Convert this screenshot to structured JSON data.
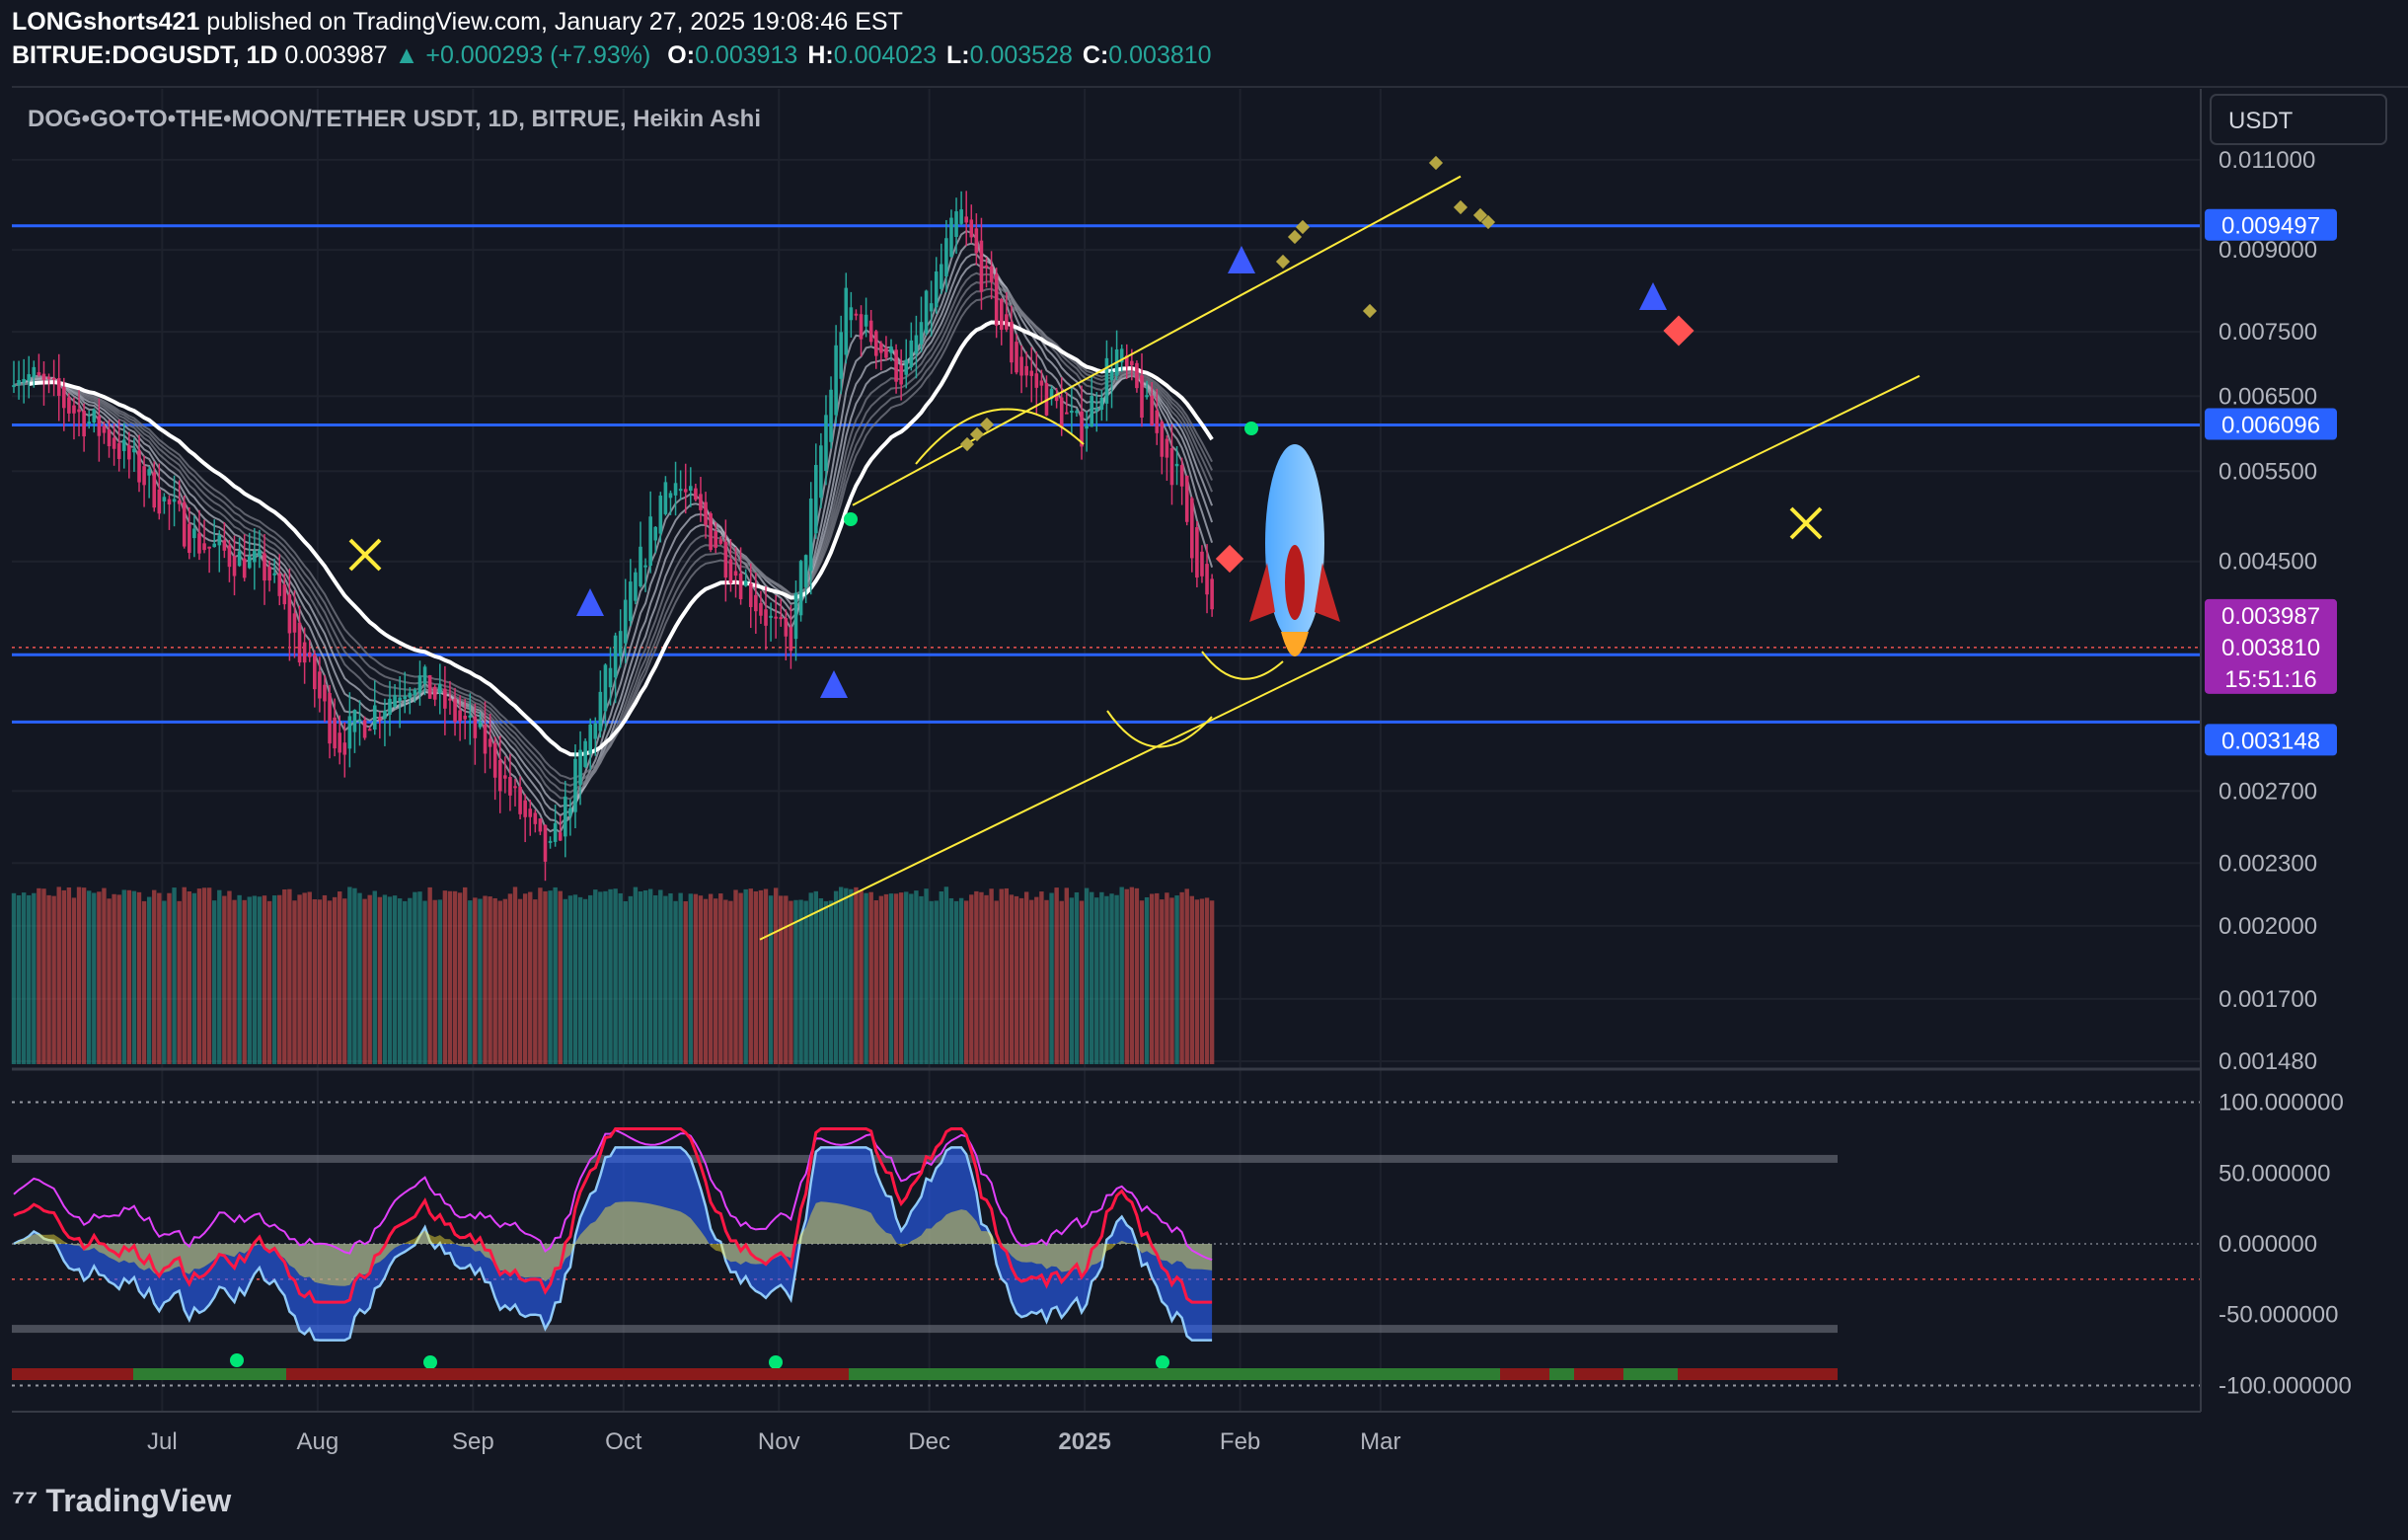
{
  "header": {
    "author": "LONGshorts421",
    "published_text": "published on TradingView.com, January 27, 2025 19:08:46 EST",
    "symbol": "BITRUE:DOGUSDT, 1D",
    "last": "0.003987",
    "change": "+0.000293 (+7.93%)",
    "ohlc": [
      {
        "label": "O:",
        "value": "0.003913"
      },
      {
        "label": "H:",
        "value": "0.004023"
      },
      {
        "label": "L:",
        "value": "0.003528"
      },
      {
        "label": "C:",
        "value": "0.003810"
      }
    ]
  },
  "chart_title": "DOG•GO•TO•THE•MOON/TETHER USDT, 1D, BITRUE, Heikin Ashi",
  "currency_button": "USDT",
  "footer": {
    "brand": "TradingView"
  },
  "colors": {
    "background": "#131722",
    "bull": "#26a69a",
    "bear": "#ef5350",
    "level_line": "#2962ff",
    "channel": "#ffeb3b",
    "current_price_tag": "#9c27b0"
  },
  "chart_data": [
    {
      "type": "candlestick",
      "style": "Heikin Ashi",
      "x_ticks": [
        "Jul",
        "Aug",
        "Sep",
        "Oct",
        "Nov",
        "Dec",
        "2025",
        "Feb",
        "Mar"
      ],
      "y_ticks": [
        "0.011000",
        "0.009000",
        "0.007500",
        "0.006500",
        "0.005500",
        "0.004500",
        "0.002700",
        "0.002300",
        "0.002000",
        "0.001700",
        "0.001480"
      ],
      "y_range": [
        0.00148,
        0.0126
      ],
      "scale": "log",
      "horizontal_levels": [
        {
          "value": 0.009497,
          "label": "0.009497"
        },
        {
          "value": 0.006096,
          "label": "0.006096"
        },
        {
          "value": 0.003656,
          "label": "0.003656"
        },
        {
          "value": 0.003148,
          "label": "0.003148"
        }
      ],
      "current_price": {
        "price": "0.003987",
        "close": "0.003810",
        "countdown": "15:51:16"
      },
      "path_points": [
        {
          "date": "2024-06-01",
          "close": 0.007
        },
        {
          "date": "2024-06-21",
          "close": 0.0059
        },
        {
          "date": "2024-07-08",
          "close": 0.0047
        },
        {
          "date": "2024-07-22",
          "close": 0.0044
        },
        {
          "date": "2024-08-05",
          "close": 0.003
        },
        {
          "date": "2024-08-20",
          "close": 0.0035
        },
        {
          "date": "2024-09-03",
          "close": 0.003
        },
        {
          "date": "2024-09-16",
          "close": 0.0023
        },
        {
          "date": "2024-09-27",
          "close": 0.0034
        },
        {
          "date": "2024-10-10",
          "close": 0.0055
        },
        {
          "date": "2024-10-22",
          "close": 0.0045
        },
        {
          "date": "2024-11-03",
          "close": 0.0037
        },
        {
          "date": "2024-11-14",
          "close": 0.008
        },
        {
          "date": "2024-11-26",
          "close": 0.0068
        },
        {
          "date": "2024-12-07",
          "close": 0.0098
        },
        {
          "date": "2024-12-18",
          "close": 0.007
        },
        {
          "date": "2024-12-31",
          "close": 0.006
        },
        {
          "date": "2025-01-07",
          "close": 0.0072
        },
        {
          "date": "2025-01-19",
          "close": 0.0055
        },
        {
          "date": "2025-01-27",
          "close": 0.00381
        }
      ]
    },
    {
      "type": "oscillator",
      "y_ticks": [
        "100.000000",
        "50.000000",
        "0.000000",
        "-50.000000",
        "-100.000000"
      ],
      "y_range": [
        -115,
        115
      ]
    }
  ]
}
